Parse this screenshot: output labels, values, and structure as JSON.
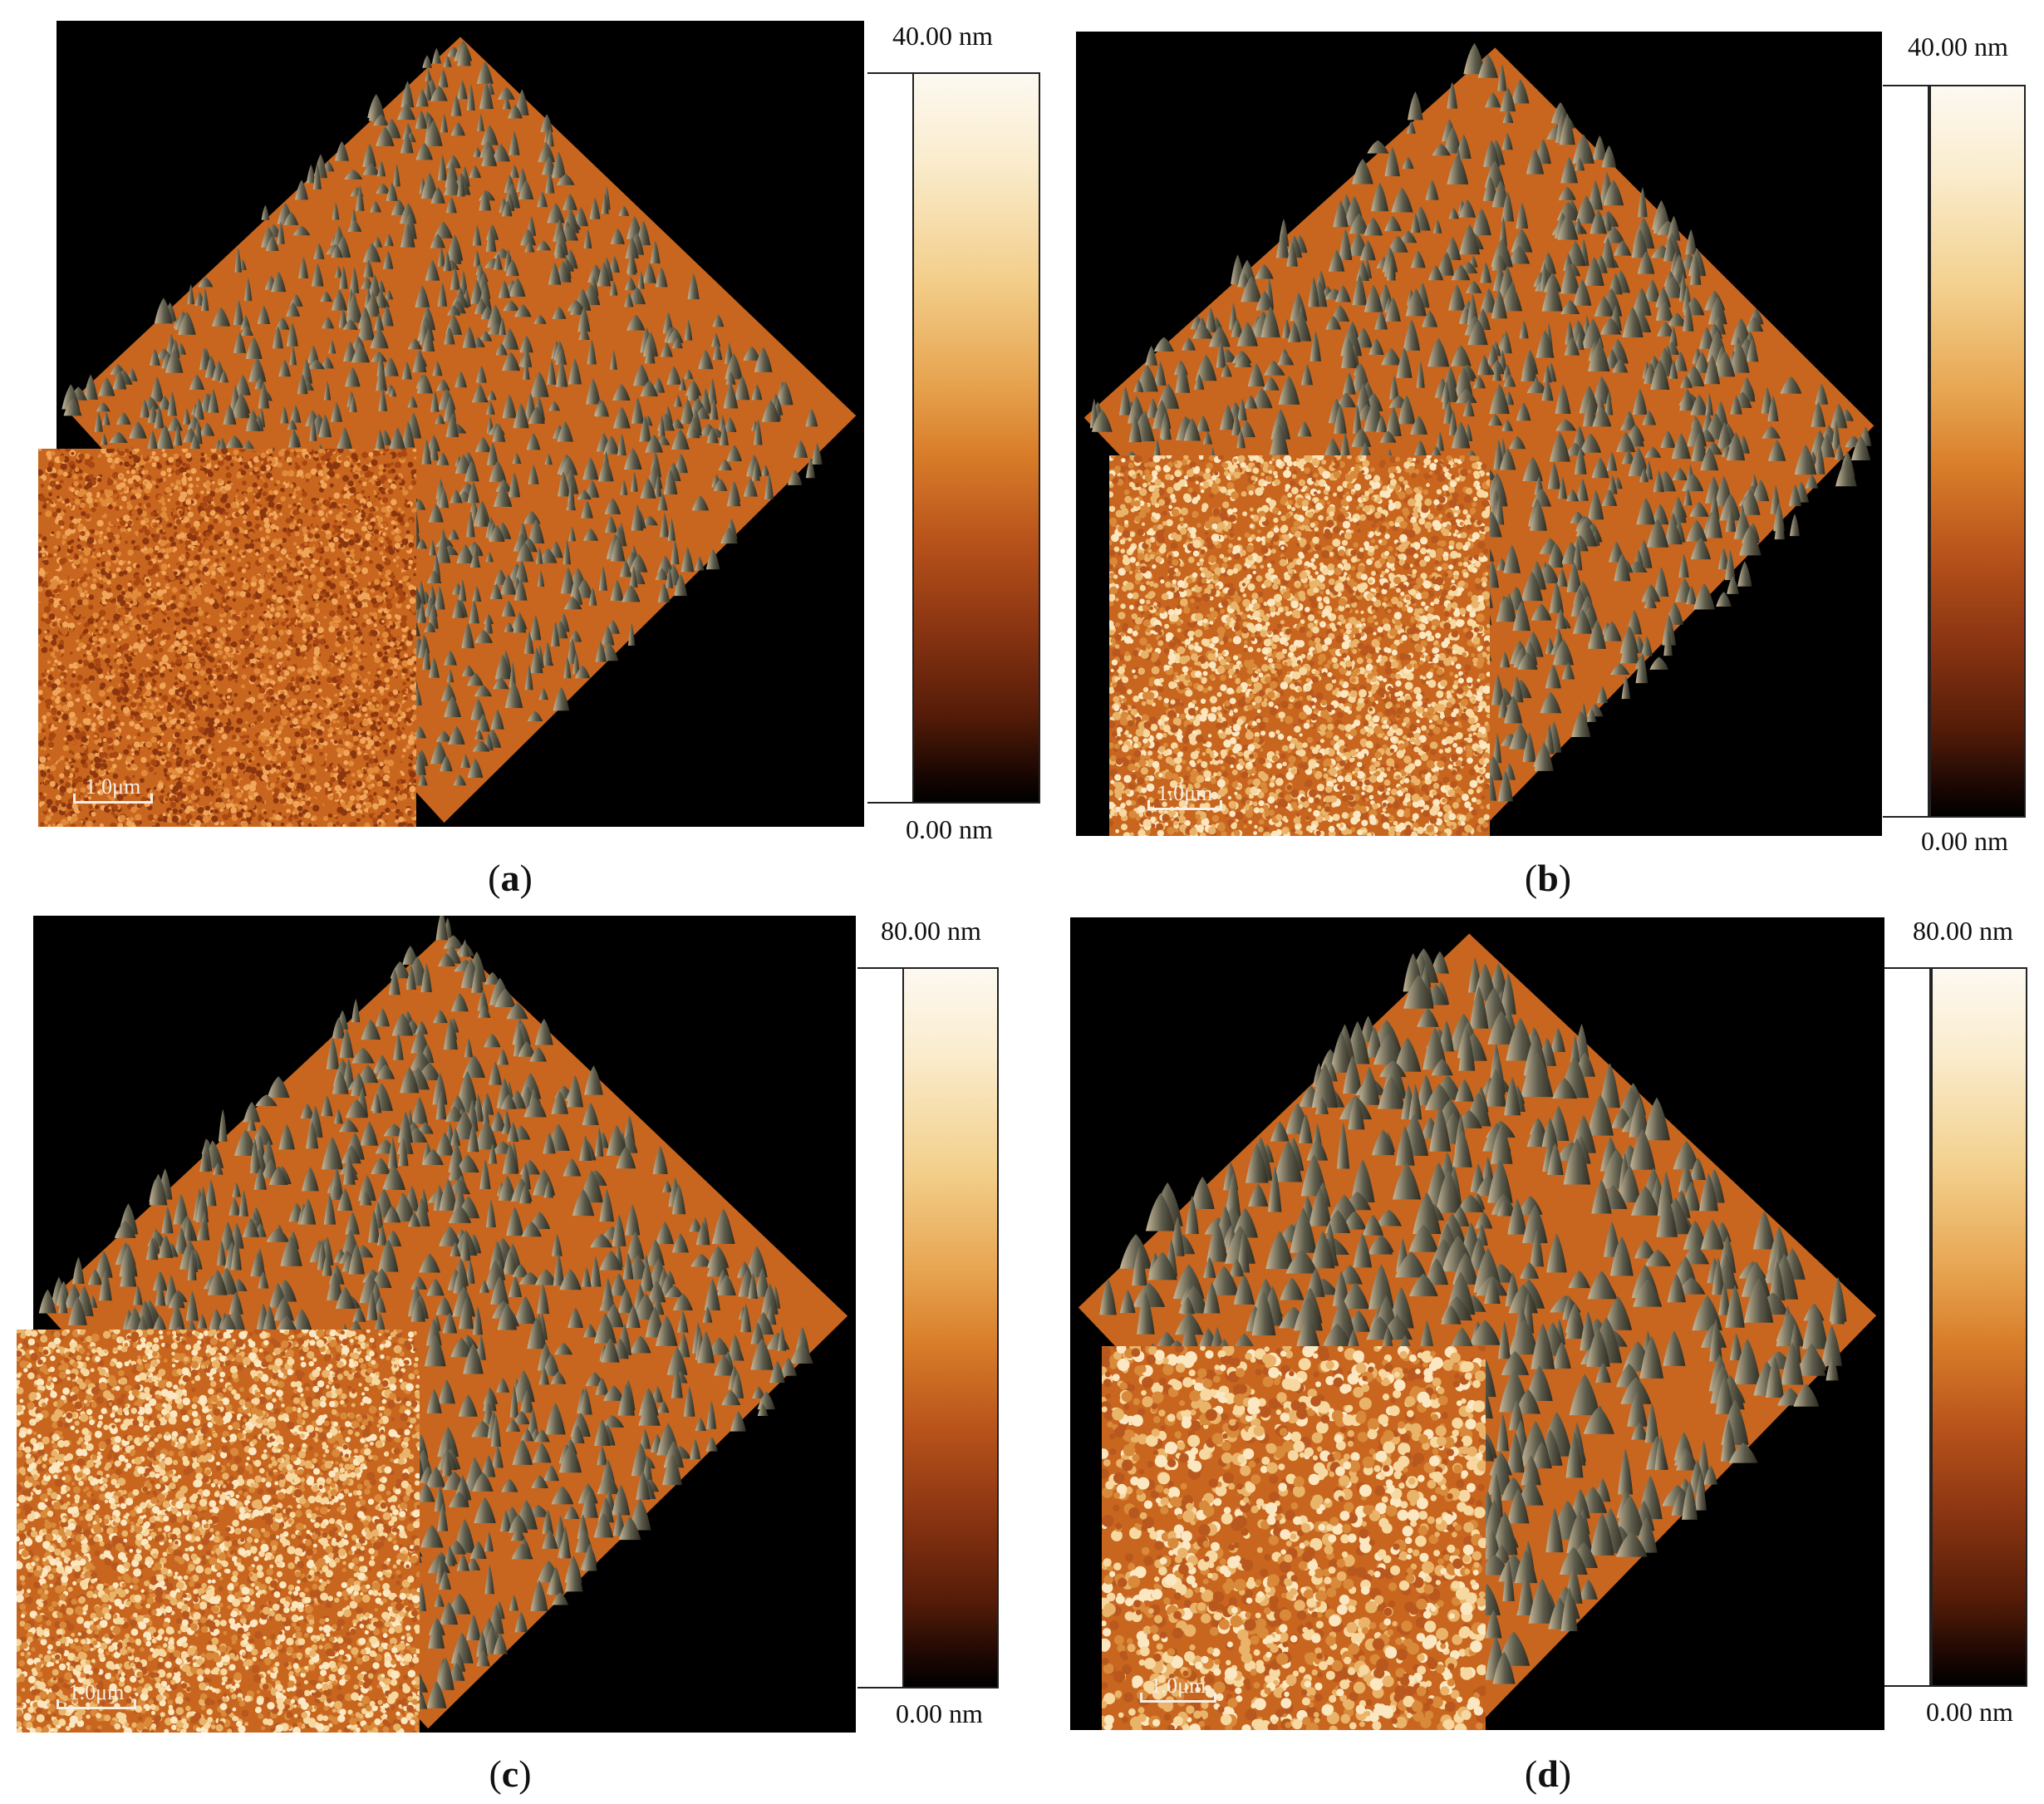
{
  "panels": [
    {
      "id": "a",
      "caption_letter": "a",
      "scale_max": "40.00 nm",
      "scale_min": "0.00 nm",
      "scalebar": "1.0μm"
    },
    {
      "id": "b",
      "caption_letter": "b",
      "scale_max": "40.00 nm",
      "scale_min": "0.00 nm",
      "scalebar": "1.0μm"
    },
    {
      "id": "c",
      "caption_letter": "c",
      "scale_max": "80.00 nm",
      "scale_min": "0.00 nm",
      "scalebar": "1.0μm"
    },
    {
      "id": "d",
      "caption_letter": "d",
      "scale_max": "80.00 nm",
      "scale_min": "0.00 nm",
      "scalebar": "1.0μm"
    }
  ],
  "colors": {
    "background": "#000000",
    "surface": "#c8661f",
    "peak_dark": "#5b5a4a",
    "peak_light": "#c9b99a"
  }
}
